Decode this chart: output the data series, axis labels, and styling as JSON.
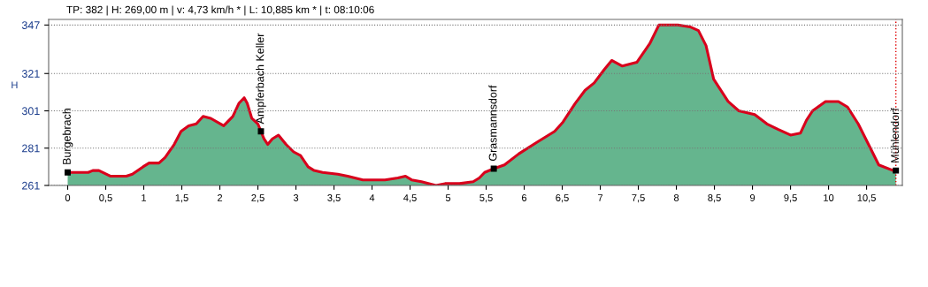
{
  "chart_data": {
    "type": "area",
    "ylabel": "H",
    "x": [
      0,
      0.27,
      0.33,
      0.41,
      0.56,
      0.64,
      0.77,
      0.85,
      0.99,
      1.07,
      1.2,
      1.28,
      1.4,
      1.49,
      1.59,
      1.69,
      1.78,
      1.88,
      2.05,
      2.17,
      2.25,
      2.32,
      2.36,
      2.42,
      2.5,
      2.54,
      2.58,
      2.63,
      2.69,
      2.77,
      2.87,
      2.97,
      3.06,
      3.16,
      3.24,
      3.35,
      3.55,
      3.68,
      3.88,
      4.17,
      4.34,
      4.44,
      4.52,
      4.65,
      4.84,
      4.96,
      5.15,
      5.33,
      5.41,
      5.48,
      5.6,
      5.74,
      5.93,
      6.16,
      6.4,
      6.51,
      6.67,
      6.8,
      6.92,
      7.05,
      7.15,
      7.29,
      7.48,
      7.65,
      7.77,
      8.02,
      8.18,
      8.29,
      8.39,
      8.49,
      8.68,
      8.82,
      9.03,
      9.19,
      9.34,
      9.5,
      9.63,
      9.71,
      9.79,
      9.96,
      10.13,
      10.25,
      10.39,
      10.55,
      10.66,
      10.85,
      10.885
    ],
    "series": [
      {
        "color": "#4aa87a",
        "values": [
          268,
          268,
          269,
          269,
          266,
          266,
          266,
          267,
          271,
          273,
          273,
          276,
          283,
          290,
          293,
          294,
          298,
          297,
          293,
          298,
          305,
          308,
          305,
          297,
          294,
          290,
          286,
          283,
          286,
          288,
          283,
          279,
          277,
          271,
          269,
          268,
          267,
          266,
          264,
          264,
          265,
          266,
          264,
          263,
          261,
          262,
          262,
          263,
          265,
          268,
          270,
          272,
          278,
          284,
          290,
          295,
          305,
          312,
          316,
          323,
          328,
          325,
          327,
          337,
          347,
          347,
          346,
          344,
          336,
          318,
          306,
          301,
          299,
          294,
          291,
          288,
          289,
          296,
          301,
          306,
          306,
          303,
          294,
          281,
          272,
          269,
          269
        ]
      }
    ],
    "xlim": [
      -0.25,
      10.97
    ],
    "ylim": [
      261,
      350
    ],
    "xticks": [
      {
        "value": 0,
        "label": "0"
      },
      {
        "value": 0.5,
        "label": "0,5"
      },
      {
        "value": 1,
        "label": "1"
      },
      {
        "value": 1.5,
        "label": "1,5"
      },
      {
        "value": 2,
        "label": "2"
      },
      {
        "value": 2.5,
        "label": "2,5"
      },
      {
        "value": 3,
        "label": "3"
      },
      {
        "value": 3.5,
        "label": "3,5"
      },
      {
        "value": 4,
        "label": "4"
      },
      {
        "value": 4.5,
        "label": "4,5"
      },
      {
        "value": 5,
        "label": "5"
      },
      {
        "value": 5.5,
        "label": "5,5"
      },
      {
        "value": 6,
        "label": "6"
      },
      {
        "value": 6.5,
        "label": "6,5"
      },
      {
        "value": 7,
        "label": "7"
      },
      {
        "value": 7.5,
        "label": "7,5"
      },
      {
        "value": 8,
        "label": "8"
      },
      {
        "value": 8.5,
        "label": "8,5"
      },
      {
        "value": 9,
        "label": "9"
      },
      {
        "value": 9.5,
        "label": "9,5"
      },
      {
        "value": 10,
        "label": "10"
      },
      {
        "value": 10.5,
        "label": "10,5"
      }
    ],
    "yticks": [
      261,
      281,
      301,
      321,
      347
    ],
    "grid": "y",
    "ref_lines": [
      {
        "axis": "x",
        "value": 10.885,
        "color": "#e00000",
        "line_style": "dotted"
      }
    ],
    "annotations": [
      "TP: 382 | H: 269,00 m | v: 4,73 km/h * | L: 10,885 km * | t: 08:10:06",
      {
        "text": "Burgebrach",
        "x": 0,
        "y": 268
      },
      {
        "text": "Ampferbach Keller",
        "x": 2.54,
        "y": 290
      },
      {
        "text": "Grasmannsdorf",
        "x": 5.6,
        "y": 270
      },
      {
        "text": "Mühlendorf",
        "x": 10.885,
        "y": 269
      }
    ]
  }
}
